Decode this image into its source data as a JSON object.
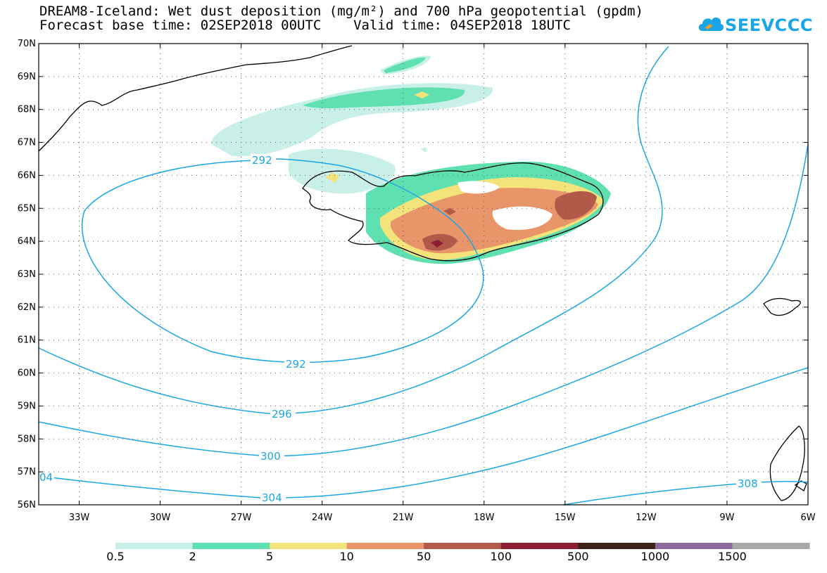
{
  "title": {
    "line1": "DREAM8-Iceland: Wet dust deposition (mg/m²) and 700 hPa geopotential (gpdm)",
    "line2": "Forecast base time: 02SEP2018 00UTC    Valid time: 04SEP2018 18UTC"
  },
  "logo": {
    "text": "SEEVCCC",
    "color": "#1aa6e6"
  },
  "map": {
    "lat_range": [
      56,
      70
    ],
    "lon_range": [
      -34.5,
      -6
    ],
    "lat_ticks": [
      "56N",
      "57N",
      "58N",
      "59N",
      "60N",
      "61N",
      "62N",
      "63N",
      "64N",
      "65N",
      "66N",
      "67N",
      "68N",
      "69N",
      "70N"
    ],
    "lon_ticks": [
      "33W",
      "30W",
      "27W",
      "24W",
      "21W",
      "18W",
      "15W",
      "12W",
      "9W",
      "6W"
    ],
    "grid": "dotted",
    "contour_color": "#1aa6e6",
    "contour_labels": [
      "292",
      "292",
      "296",
      "300",
      "304",
      "308",
      "04"
    ]
  },
  "colorbar": {
    "labels": [
      "0.5",
      "2",
      "5",
      "10",
      "50",
      "100",
      "500",
      "1000",
      "1500"
    ],
    "colors": [
      "#c8f0e8",
      "#5ee0b0",
      "#f4e27a",
      "#e8956a",
      "#b25a4a",
      "#8c1e32",
      "#3a2418",
      "#8c6a9c",
      "#a8a8a8"
    ]
  }
}
